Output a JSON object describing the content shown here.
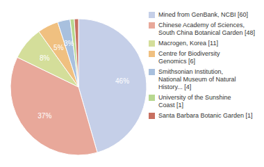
{
  "chart_data": {
    "type": "pie",
    "categories": [
      "Mined from GenBank, NCBI [60]",
      "Chinese Academy of Sciences,\nSouth China Botanical Garden [48]",
      "Macrogen, Korea [11]",
      "Centre for Biodiversity\nGenomics [6]",
      "Smithsonian Institution,\nNational Museum of Natural\nHistory... [4]",
      "University of the Sunshine\nCoast [1]",
      "Santa Barbara Botanic Garden [1]"
    ],
    "values": [
      46,
      37,
      8,
      5,
      3,
      1,
      1
    ],
    "value_labels": [
      "46%",
      "37%",
      "8%",
      "5%",
      "3%",
      null,
      null
    ],
    "colors": [
      "#c5cfe8",
      "#e8a89a",
      "#d4de9a",
      "#f0c080",
      "#a8c0de",
      "#b8d890",
      "#c87060"
    ],
    "data_labels": true
  }
}
